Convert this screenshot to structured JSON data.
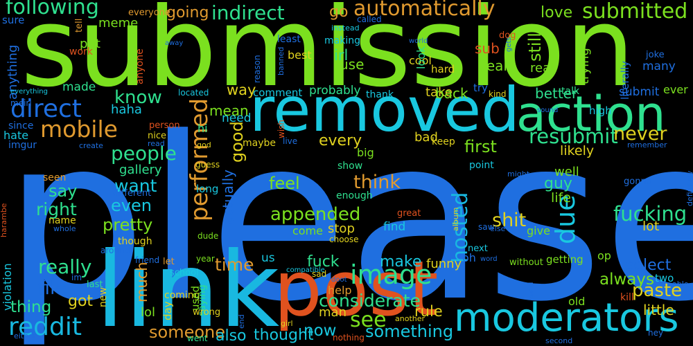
{
  "words": [
    {
      "text": "please",
      "color": "#1f6fe0"
    },
    {
      "text": "submission",
      "color": "#7be01f"
    },
    {
      "text": "link",
      "color": "#19b8e0"
    },
    {
      "text": "post",
      "color": "#e0521f"
    },
    {
      "text": "removed",
      "color": "#19c8e0"
    },
    {
      "text": "action",
      "color": "#2fe08f"
    },
    {
      "text": "moderators",
      "color": "#19c8e0"
    },
    {
      "text": "image",
      "color": "#2fe08f"
    },
    {
      "text": "reddit",
      "color": "#19b8e0"
    },
    {
      "text": "direct",
      "color": "#1f6fe0"
    },
    {
      "text": "mobile",
      "color": "#e09a2f"
    },
    {
      "text": "performed",
      "color": "#e09a2f"
    },
    {
      "text": "resubmit",
      "color": "#2fe08f"
    },
    {
      "text": "hosted",
      "color": "#19b8e0"
    },
    {
      "text": "due",
      "color": "#19c8e0"
    },
    {
      "text": "following",
      "color": "#2fe08f"
    },
    {
      "text": "automatically",
      "color": "#e09a2f"
    },
    {
      "text": "submitted",
      "color": "#7be01f"
    },
    {
      "text": "indirect",
      "color": "#2fe08f"
    },
    {
      "text": "going",
      "color": "#e09a2f"
    },
    {
      "text": "considerate",
      "color": "#2fe08f"
    },
    {
      "text": "appended",
      "color": "#7be01f"
    },
    {
      "text": "fucking",
      "color": "#2fe08f"
    },
    {
      "text": "paste",
      "color": "#e0d21f"
    },
    {
      "text": "select",
      "color": "#1f6fe0"
    },
    {
      "text": "people",
      "color": "#2fe08f"
    },
    {
      "text": "see",
      "color": "#7be01f"
    },
    {
      "text": "pretty",
      "color": "#7be01f"
    },
    {
      "text": "really",
      "color": "#2fe08f"
    },
    {
      "text": "file",
      "color": "#1f6fe0"
    },
    {
      "text": "want",
      "color": "#19c8e0"
    },
    {
      "text": "even",
      "color": "#19c8e0"
    },
    {
      "text": "know",
      "color": "#2fe08f"
    },
    {
      "text": "think",
      "color": "#e09a2f"
    },
    {
      "text": "shit",
      "color": "#e0d21f"
    },
    {
      "text": "feel",
      "color": "#7be01f"
    },
    {
      "text": "make",
      "color": "#19c8e0"
    },
    {
      "text": "fuck",
      "color": "#2fe08f"
    },
    {
      "text": "time",
      "color": "#e09a2f"
    },
    {
      "text": "got",
      "color": "#e0d21f"
    },
    {
      "text": "thing",
      "color": "#2fe08f"
    },
    {
      "text": "someone",
      "color": "#e09a2f"
    },
    {
      "text": "something",
      "color": "#19c8e0"
    },
    {
      "text": "never",
      "color": "#e0d21f"
    },
    {
      "text": "first",
      "color": "#7be01f"
    },
    {
      "text": "way",
      "color": "#e0d21f"
    },
    {
      "text": "mean",
      "color": "#7be01f"
    },
    {
      "text": "good",
      "color": "#e0d21f"
    },
    {
      "text": "actually",
      "color": "#1f6fe0"
    },
    {
      "text": "always",
      "color": "#7be01f"
    },
    {
      "text": "rule",
      "color": "#e0d21f"
    },
    {
      "text": "now",
      "color": "#19c8e0"
    },
    {
      "text": "say",
      "color": "#2fe08f"
    },
    {
      "text": "right",
      "color": "#2fe08f"
    },
    {
      "text": "much",
      "color": "#e09a2f"
    },
    {
      "text": "every",
      "color": "#e0d21f"
    },
    {
      "text": "guy",
      "color": "#2fe08f"
    },
    {
      "text": "life",
      "color": "#7be01f"
    },
    {
      "text": "lot",
      "color": "#e0d21f"
    },
    {
      "text": "little",
      "color": "#e0d21f"
    },
    {
      "text": "also",
      "color": "#19c8e0"
    },
    {
      "text": "thought",
      "color": "#19c8e0"
    },
    {
      "text": "meme",
      "color": "#7be01f"
    },
    {
      "text": "love",
      "color": "#7be01f"
    },
    {
      "text": "still",
      "color": "#7be01f"
    },
    {
      "text": "go",
      "color": "#e09a2f"
    },
    {
      "text": "sub",
      "color": "#e0521f"
    },
    {
      "text": "yeah",
      "color": "#7be01f"
    },
    {
      "text": "irl",
      "color": "#2fe08f"
    },
    {
      "text": "use",
      "color": "#7be01f"
    },
    {
      "text": "put",
      "color": "#7be01f"
    },
    {
      "text": "made",
      "color": "#2fe08f"
    },
    {
      "text": "haha",
      "color": "#19c8e0"
    },
    {
      "text": "real",
      "color": "#7be01f"
    },
    {
      "text": "better",
      "color": "#2fe08f"
    },
    {
      "text": "submit",
      "color": "#1f6fe0"
    },
    {
      "text": "trying",
      "color": "#7be01f"
    },
    {
      "text": "probably",
      "color": "#2fe08f"
    },
    {
      "text": "comment",
      "color": "#19c8e0"
    },
    {
      "text": "take",
      "color": "#e0d21f"
    },
    {
      "text": "back",
      "color": "#7be01f"
    },
    {
      "text": "need",
      "color": "#19c8e0"
    },
    {
      "text": "bad",
      "color": "#e0d21f"
    },
    {
      "text": "likely",
      "color": "#e0d21f"
    },
    {
      "text": "well",
      "color": "#7be01f"
    },
    {
      "text": "gallery",
      "color": "#2fe08f"
    },
    {
      "text": "come",
      "color": "#7be01f"
    },
    {
      "text": "stop",
      "color": "#e0d21f"
    },
    {
      "text": "find",
      "color": "#19c8e0"
    },
    {
      "text": "give",
      "color": "#7be01f"
    },
    {
      "text": "funny",
      "color": "#e0d21f"
    },
    {
      "text": "oh",
      "color": "#1f6fe0"
    },
    {
      "text": "man",
      "color": "#e0d21f"
    },
    {
      "text": "help",
      "color": "#e09a2f"
    },
    {
      "text": "lol",
      "color": "#7be01f"
    },
    {
      "text": "us",
      "color": "#19c8e0"
    },
    {
      "text": "ever",
      "color": "#7be01f"
    },
    {
      "text": "high",
      "color": "#19c8e0"
    },
    {
      "text": "literally",
      "color": "#1f6fe0"
    },
    {
      "text": "many",
      "color": "#1f6fe0"
    },
    {
      "text": "joke",
      "color": "#1f6fe0"
    },
    {
      "text": "everyone",
      "color": "#e09a2f"
    },
    {
      "text": "tell",
      "color": "#e09a2f"
    },
    {
      "text": "sure",
      "color": "#1f6fe0"
    },
    {
      "text": "anything",
      "color": "#1f6fe0"
    },
    {
      "text": "work",
      "color": "#e0521f"
    },
    {
      "text": "anyone",
      "color": "#e0521f"
    },
    {
      "text": "least",
      "color": "#1f6fe0"
    },
    {
      "text": "best",
      "color": "#e0d21f"
    },
    {
      "text": "making",
      "color": "#19c8e0"
    },
    {
      "text": "cool",
      "color": "#e0d21f"
    },
    {
      "text": "look",
      "color": "#2fe08f"
    },
    {
      "text": "hard",
      "color": "#e0d21f"
    },
    {
      "text": "try",
      "color": "#1f6fe0"
    },
    {
      "text": "thank",
      "color": "#19c8e0"
    },
    {
      "text": "talk",
      "color": "#2fe08f"
    },
    {
      "text": "kind",
      "color": "#e0d21f"
    },
    {
      "text": "located",
      "color": "#19c8e0"
    },
    {
      "text": "reason",
      "color": "#1f6fe0"
    },
    {
      "text": "banned",
      "color": "#1f6fe0"
    },
    {
      "text": "since",
      "color": "#1f6fe0"
    },
    {
      "text": "hate",
      "color": "#19c8e0"
    },
    {
      "text": "imgur",
      "color": "#1f6fe0"
    },
    {
      "text": "person",
      "color": "#e0521f"
    },
    {
      "text": "nice",
      "color": "#e0d21f"
    },
    {
      "text": "different",
      "color": "#1f6fe0"
    },
    {
      "text": "seen",
      "color": "#e09a2f"
    },
    {
      "text": "name",
      "color": "#e0d21f"
    },
    {
      "text": "whole",
      "color": "#1f6fe0"
    },
    {
      "text": "though",
      "color": "#e0d21f"
    },
    {
      "text": "around",
      "color": "#1f6fe0"
    },
    {
      "text": "violation",
      "color": "#19c8e0"
    },
    {
      "text": "harambe",
      "color": "#e0521f"
    },
    {
      "text": "long",
      "color": "#19c8e0"
    },
    {
      "text": "guess",
      "color": "#e0d21f"
    },
    {
      "text": "god",
      "color": "#e0d21f"
    },
    {
      "text": "hi",
      "color": "#2fe08f"
    },
    {
      "text": "maybe",
      "color": "#e0d21f"
    },
    {
      "text": "live",
      "color": "#1f6fe0"
    },
    {
      "text": "wish",
      "color": "#e0521f"
    },
    {
      "text": "read",
      "color": "#1f6fe0"
    },
    {
      "text": "create",
      "color": "#1f6fe0"
    },
    {
      "text": "keep",
      "color": "#e0d21f"
    },
    {
      "text": "big",
      "color": "#7be01f"
    },
    {
      "text": "show",
      "color": "#2fe08f"
    },
    {
      "text": "enough",
      "color": "#2fe08f"
    },
    {
      "text": "point",
      "color": "#19c8e0"
    },
    {
      "text": "might",
      "color": "#1f6fe0"
    },
    {
      "text": "remember",
      "color": "#1f6fe0"
    },
    {
      "text": "gonna",
      "color": "#1f6fe0"
    },
    {
      "text": "definitely",
      "color": "#1f6fe0"
    },
    {
      "text": "great",
      "color": "#e0521f"
    },
    {
      "text": "album",
      "color": "#e0d21f"
    },
    {
      "text": "saw",
      "color": "#1f6fe0"
    },
    {
      "text": "else",
      "color": "#1f6fe0"
    },
    {
      "text": "next",
      "color": "#19c8e0"
    },
    {
      "text": "word",
      "color": "#1f6fe0"
    },
    {
      "text": "getting",
      "color": "#7be01f"
    },
    {
      "text": "op",
      "color": "#7be01f"
    },
    {
      "text": "without",
      "color": "#7be01f"
    },
    {
      "text": "two",
      "color": "#19c8e0"
    },
    {
      "text": "able",
      "color": "#1f6fe0"
    },
    {
      "text": "said",
      "color": "#1f6fe0"
    },
    {
      "text": "kill",
      "color": "#e0521f"
    },
    {
      "text": "old",
      "color": "#7be01f"
    },
    {
      "text": "hey",
      "color": "#1f6fe0"
    },
    {
      "text": "second",
      "color": "#1f6fe0"
    },
    {
      "text": "friend",
      "color": "#1f6fe0"
    },
    {
      "text": "let",
      "color": "#e09a2f"
    },
    {
      "text": "year",
      "color": "#7be01f"
    },
    {
      "text": "school",
      "color": "#19c8e0"
    },
    {
      "text": "coming",
      "color": "#e0d21f"
    },
    {
      "text": "day",
      "color": "#e0d21f"
    },
    {
      "text": "used",
      "color": "#7be01f"
    },
    {
      "text": "saying",
      "color": "#2fe08f"
    },
    {
      "text": "wrong",
      "color": "#e0d21f"
    },
    {
      "text": "dude",
      "color": "#7be01f"
    },
    {
      "text": "went",
      "color": "#2fe08f"
    },
    {
      "text": "im",
      "color": "#1f6fe0"
    },
    {
      "text": "last",
      "color": "#2fe08f"
    },
    {
      "text": "new",
      "color": "#e0d21f"
    },
    {
      "text": "either",
      "color": "#1f6fe0"
    },
    {
      "text": "end",
      "color": "#1f6fe0"
    },
    {
      "text": "girl",
      "color": "#e0d21f"
    },
    {
      "text": "sad",
      "color": "#e0d21f"
    },
    {
      "text": "doot",
      "color": "#1f6fe0"
    },
    {
      "text": "nothing",
      "color": "#e0521f"
    },
    {
      "text": "compatible",
      "color": "#19c8e0"
    },
    {
      "text": "another",
      "color": "#e0d21f"
    },
    {
      "text": "choose",
      "color": "#e0d21f"
    },
    {
      "text": "meirl",
      "color": "#1f6fe0"
    },
    {
      "text": "everything",
      "color": "#19c8e0"
    },
    {
      "text": "called",
      "color": "#1f6fe0"
    },
    {
      "text": "instead",
      "color": "#19c8e0"
    },
    {
      "text": "world",
      "color": "#1f6fe0"
    },
    {
      "text": "dog",
      "color": "#e0521f"
    },
    {
      "text": "gets",
      "color": "#1f6fe0"
    },
    {
      "text": "away",
      "color": "#1f6fe0"
    },
    {
      "text": "sound",
      "color": "#1f6fe0"
    }
  ]
}
